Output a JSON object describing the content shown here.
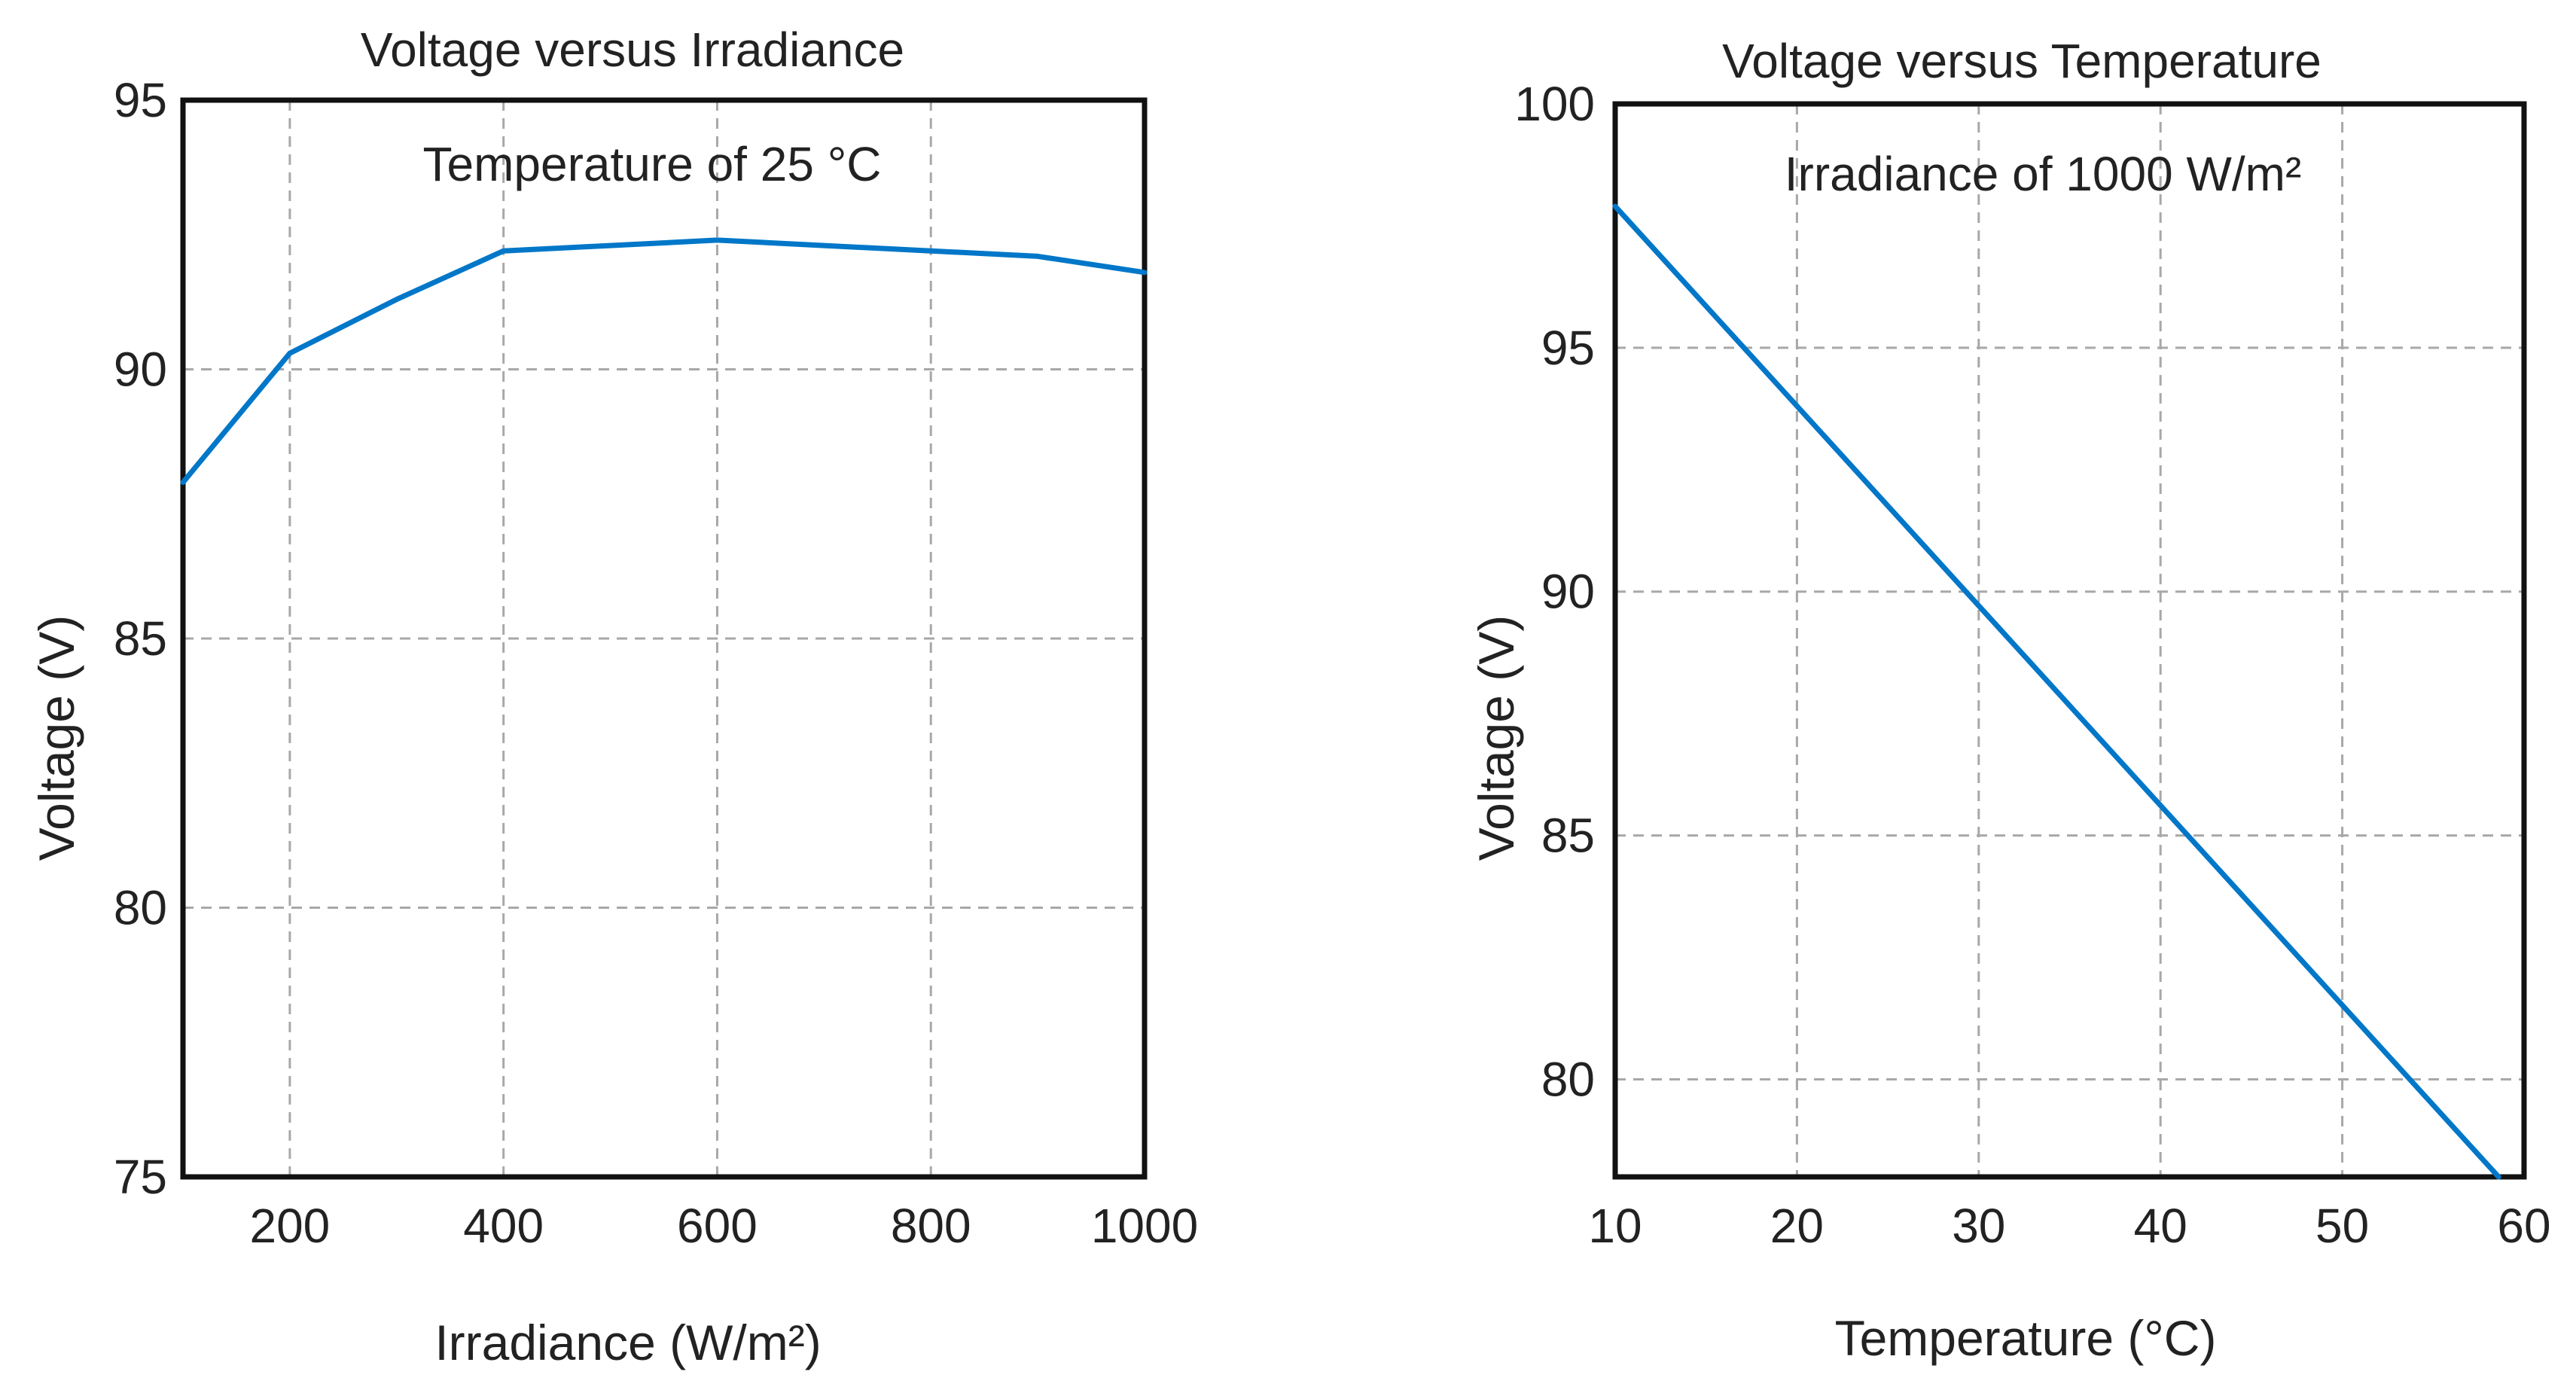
{
  "chart_data": [
    {
      "type": "line",
      "title": "Voltage versus Irradiance",
      "annotation": "Temperature of 25 °C",
      "xlabel": "Irradiance (W/m²)",
      "ylabel": "Voltage (V)",
      "xlim": [
        100,
        1000
      ],
      "ylim": [
        75,
        95
      ],
      "xticks": [
        200,
        400,
        600,
        800,
        1000
      ],
      "yticks": [
        75,
        80,
        85,
        90,
        95
      ],
      "grid": true,
      "series": [
        {
          "name": "Voltage",
          "color": "#0077C8",
          "x": [
            100,
            200,
            300,
            400,
            500,
            600,
            700,
            800,
            900,
            1000
          ],
          "y": [
            87.9,
            90.3,
            91.3,
            92.2,
            92.3,
            92.4,
            92.3,
            92.2,
            92.1,
            91.8
          ]
        }
      ]
    },
    {
      "type": "line",
      "title": "Voltage versus Temperature",
      "annotation": "Irradiance of 1000 W/m²",
      "xlabel": "Temperature (°C)",
      "ylabel": "Voltage (V)",
      "xlim": [
        10,
        60
      ],
      "ylim": [
        78,
        100
      ],
      "xticks": [
        10,
        20,
        30,
        40,
        50,
        60
      ],
      "yticks": [
        80,
        85,
        90,
        95,
        100
      ],
      "grid": true,
      "series": [
        {
          "name": "Voltage",
          "color": "#0077C8",
          "x": [
            10,
            58.6
          ],
          "y": [
            97.9,
            78
          ]
        }
      ]
    }
  ]
}
